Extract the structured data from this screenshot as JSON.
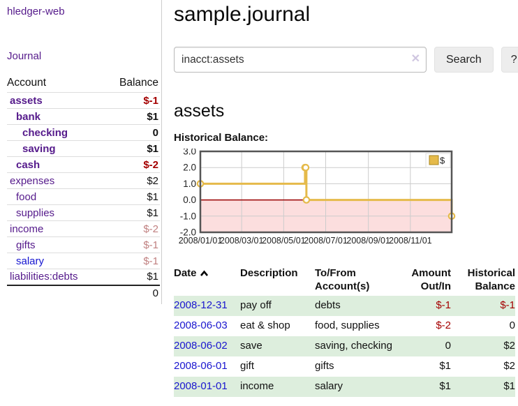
{
  "sidebar": {
    "app_title": "hledger-web",
    "nav": {
      "journal_label": "Journal"
    },
    "accounts_table": {
      "headers": {
        "account": "Account",
        "balance": "Balance"
      },
      "rows": [
        {
          "name": "assets",
          "balance": "$-1",
          "depth": 1,
          "bold": true,
          "neg": "strong"
        },
        {
          "name": "bank",
          "balance": "$1",
          "depth": 2,
          "bold": true,
          "neg": "none"
        },
        {
          "name": "checking",
          "balance": "0",
          "depth": 3,
          "bold": true,
          "neg": "none"
        },
        {
          "name": "saving",
          "balance": "$1",
          "depth": 3,
          "bold": true,
          "neg": "none"
        },
        {
          "name": "cash",
          "balance": "$-2",
          "depth": 2,
          "bold": true,
          "neg": "strong"
        },
        {
          "name": "expenses",
          "balance": "$2",
          "depth": 1,
          "bold": false,
          "neg": "none"
        },
        {
          "name": "food",
          "balance": "$1",
          "depth": 2,
          "bold": false,
          "neg": "none"
        },
        {
          "name": "supplies",
          "balance": "$1",
          "depth": 2,
          "bold": false,
          "neg": "none"
        },
        {
          "name": "income",
          "balance": "$-2",
          "depth": 1,
          "bold": false,
          "neg": "muted"
        },
        {
          "name": "gifts",
          "balance": "$-1",
          "depth": 2,
          "bold": false,
          "neg": "muted"
        },
        {
          "name": "salary",
          "balance": "$-1",
          "depth": 2,
          "bold": false,
          "neg": "muted",
          "link_color": "blue"
        },
        {
          "name": "liabilities:debts",
          "balance": "$1",
          "depth": 1,
          "bold": false,
          "neg": "none"
        }
      ],
      "total": "0"
    }
  },
  "main": {
    "title": "sample.journal",
    "search": {
      "value": "inacct:assets",
      "clear_icon": "✕",
      "button_label": "Search",
      "help_label": "?"
    },
    "section_title": "assets",
    "chart_label": "Historical Balance:"
  },
  "chart_data": {
    "type": "line",
    "step": true,
    "title": "Historical Balance",
    "series": [
      {
        "name": "$",
        "color": "#e5ba4a",
        "points": [
          {
            "date": "2008-01-01",
            "value": 1
          },
          {
            "date": "2008-06-01",
            "value": 2
          },
          {
            "date": "2008-06-02",
            "value": 2
          },
          {
            "date": "2008-06-03",
            "value": 0
          },
          {
            "date": "2008-12-31",
            "value": -1
          }
        ]
      }
    ],
    "x_range": [
      "2008/01/01",
      "2008/12/31"
    ],
    "x_ticks": [
      "2008/01/01",
      "2008/03/01",
      "2008/05/01",
      "2008/07/01",
      "2008/09/01",
      "2008/11/01"
    ],
    "y_ticks": [
      "3.0",
      "2.0",
      "1.0",
      "0.0",
      "-1.0",
      "-2.0"
    ],
    "ylim": [
      -2,
      3
    ],
    "grid": true,
    "legend": {
      "label": "$",
      "position": "top-right"
    },
    "negative_region_color": "#fcdede",
    "zero_line_color": "#990000"
  },
  "register_table": {
    "headers": {
      "date": "Date",
      "description": "Description",
      "accounts": "To/From Account(s)",
      "amount": "Amount Out/In",
      "balance": "Historical Balance"
    },
    "sort_indicator": "ascending",
    "rows": [
      {
        "date": "2008-12-31",
        "description": "pay off",
        "accounts": [
          "debts"
        ],
        "amount": "$-1",
        "balance": "$-1"
      },
      {
        "date": "2008-06-03",
        "description": "eat & shop",
        "accounts": [
          "food",
          "supplies"
        ],
        "amount": "$-2",
        "balance": "0"
      },
      {
        "date": "2008-06-02",
        "description": "save",
        "accounts": [
          "saving",
          "checking"
        ],
        "amount": "0",
        "balance": "$2"
      },
      {
        "date": "2008-06-01",
        "description": "gift",
        "accounts": [
          "gifts"
        ],
        "amount": "$1",
        "balance": "$2"
      },
      {
        "date": "2008-01-01",
        "description": "income",
        "accounts": [
          "salary"
        ],
        "amount": "$1",
        "balance": "$1"
      }
    ]
  },
  "colors": {
    "link_purple": "#551a8b",
    "link_blue": "#1515d0",
    "negative_strong": "#a40000",
    "negative_muted": "#c08080",
    "row_green": "#ddeedd"
  }
}
